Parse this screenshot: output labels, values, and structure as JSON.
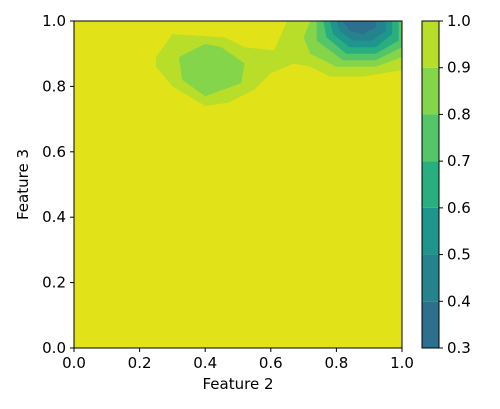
{
  "chart_data": {
    "type": "heatmap",
    "subtype": "filled-contour",
    "title": "",
    "xlabel": "Feature 2",
    "ylabel": "Feature 3",
    "xlim": [
      0.0,
      1.0
    ],
    "ylim": [
      0.0,
      1.0
    ],
    "x_ticks": [
      "0.0",
      "0.2",
      "0.4",
      "0.6",
      "0.8",
      "1.0"
    ],
    "y_ticks": [
      "0.0",
      "0.2",
      "0.4",
      "0.6",
      "0.8",
      "1.0"
    ],
    "grid": false,
    "colorbar": {
      "levels": [
        0.3,
        0.4,
        0.5,
        0.6,
        0.7,
        0.8,
        0.9,
        1.0
      ],
      "tick_labels": [
        "0.3",
        "0.4",
        "0.5",
        "0.6",
        "0.7",
        "0.8",
        "0.9",
        "1.0"
      ],
      "colors": [
        "#2d6f8e",
        "#25838e",
        "#1f968b",
        "#29af7f",
        "#55c667",
        "#85d54a",
        "#b8de29",
        "#e1e318"
      ]
    },
    "background_value": 0.95,
    "regions": [
      {
        "name": "region-lime-top",
        "value": 0.85,
        "color": "#b8de29",
        "polygon": [
          [
            0.25,
            0.89
          ],
          [
            0.25,
            0.86
          ],
          [
            0.3,
            0.8
          ],
          [
            0.4,
            0.74
          ],
          [
            0.47,
            0.75
          ],
          [
            0.55,
            0.79
          ],
          [
            0.6,
            0.84
          ],
          [
            0.67,
            0.87
          ],
          [
            0.72,
            0.86
          ],
          [
            0.78,
            0.83
          ],
          [
            0.88,
            0.83
          ],
          [
            1.0,
            0.85
          ],
          [
            1.0,
            1.0
          ],
          [
            0.65,
            1.0
          ],
          [
            0.61,
            0.91
          ],
          [
            0.52,
            0.92
          ],
          [
            0.46,
            0.95
          ],
          [
            0.3,
            0.96
          ]
        ]
      },
      {
        "name": "region-green-blob",
        "value": 0.75,
        "color": "#85d54a",
        "polygon": [
          [
            0.32,
            0.89
          ],
          [
            0.33,
            0.82
          ],
          [
            0.4,
            0.77
          ],
          [
            0.51,
            0.81
          ],
          [
            0.52,
            0.87
          ],
          [
            0.45,
            0.92
          ],
          [
            0.4,
            0.93
          ]
        ]
      },
      {
        "name": "region-green-top",
        "value": 0.75,
        "color": "#85d54a",
        "polygon": [
          [
            0.72,
            1.0
          ],
          [
            0.7,
            0.95
          ],
          [
            0.72,
            0.9
          ],
          [
            0.8,
            0.86
          ],
          [
            0.92,
            0.86
          ],
          [
            1.0,
            0.89
          ],
          [
            1.0,
            1.0
          ]
        ]
      },
      {
        "name": "region-teal-top",
        "value": 0.65,
        "color": "#55c667",
        "polygon": [
          [
            0.74,
            1.0
          ],
          [
            0.74,
            0.94
          ],
          [
            0.82,
            0.88
          ],
          [
            0.92,
            0.88
          ],
          [
            1.0,
            0.92
          ],
          [
            1.0,
            1.0
          ]
        ]
      },
      {
        "name": "region-teal2-top",
        "value": 0.55,
        "color": "#29af7f",
        "polygon": [
          [
            0.76,
            1.0
          ],
          [
            0.77,
            0.95
          ],
          [
            0.83,
            0.9
          ],
          [
            0.92,
            0.9
          ],
          [
            0.99,
            0.94
          ],
          [
            0.99,
            1.0
          ]
        ]
      },
      {
        "name": "region-teal3-top",
        "value": 0.45,
        "color": "#1f968b",
        "polygon": [
          [
            0.78,
            1.0
          ],
          [
            0.79,
            0.96
          ],
          [
            0.84,
            0.92
          ],
          [
            0.92,
            0.92
          ],
          [
            0.97,
            0.96
          ],
          [
            0.97,
            1.0
          ]
        ]
      },
      {
        "name": "region-blue-top",
        "value": 0.35,
        "color": "#25838e",
        "polygon": [
          [
            0.8,
            1.0
          ],
          [
            0.81,
            0.97
          ],
          [
            0.85,
            0.94
          ],
          [
            0.91,
            0.94
          ],
          [
            0.95,
            0.97
          ],
          [
            0.95,
            1.0
          ]
        ]
      },
      {
        "name": "region-darkblue-top",
        "value": 0.3,
        "color": "#2d6f8e",
        "polygon": [
          [
            0.82,
            1.0
          ],
          [
            0.84,
            0.97
          ],
          [
            0.88,
            0.96
          ],
          [
            0.92,
            0.98
          ],
          [
            0.92,
            1.0
          ]
        ]
      }
    ]
  }
}
